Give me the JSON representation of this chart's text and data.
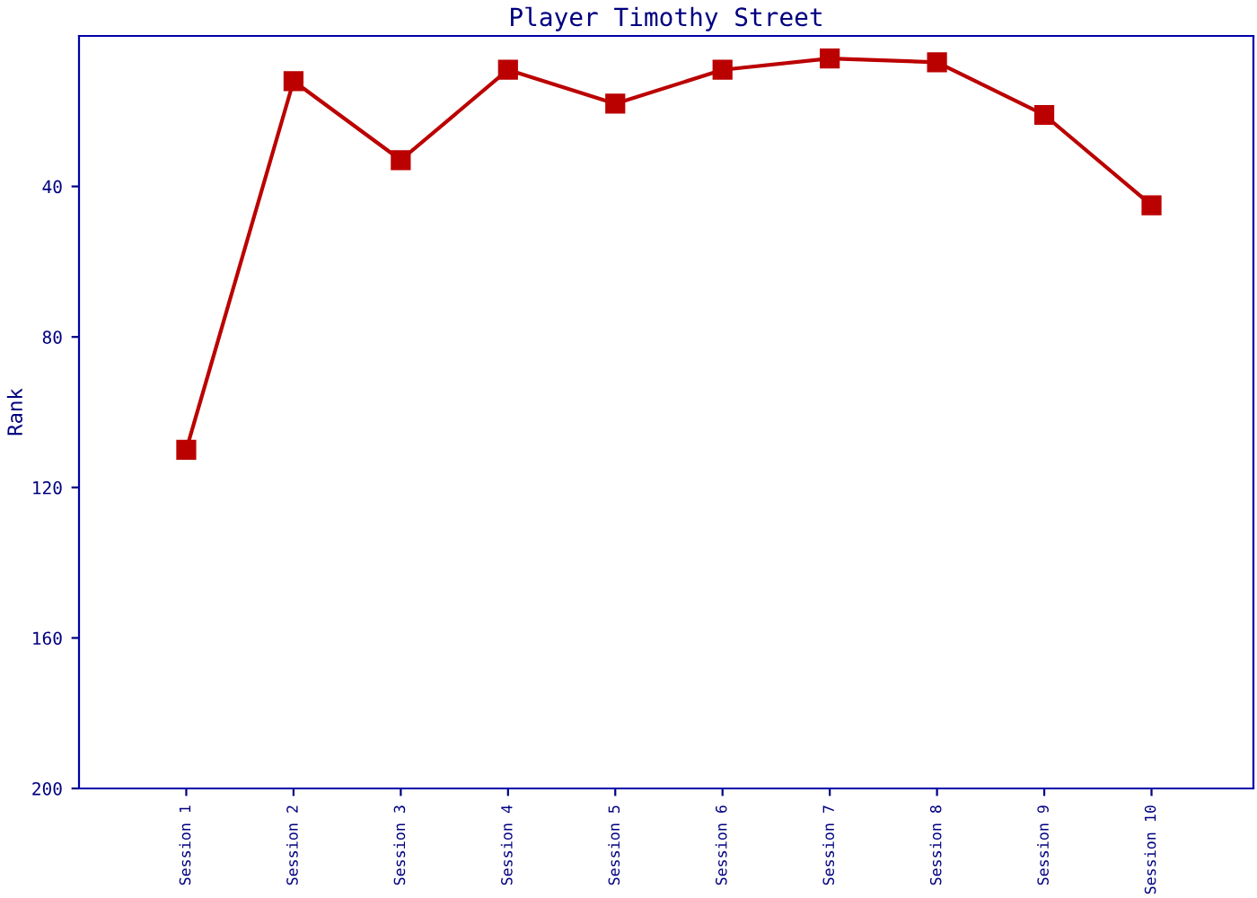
{
  "chart_data": {
    "type": "line",
    "title": "Player Timothy Street",
    "ylabel": "Rank",
    "categories": [
      "Session 1",
      "Session 2",
      "Session 3",
      "Session 4",
      "Session 5",
      "Session 6",
      "Session 7",
      "Session 8",
      "Session 9",
      "Session 10"
    ],
    "series": [
      {
        "color": "#bb0000",
        "values": [
          110,
          12,
          33,
          9,
          18,
          9,
          6,
          7,
          21,
          45
        ]
      }
    ],
    "ylim": [
      200,
      0
    ],
    "yticks": [
      40,
      80,
      120,
      160,
      200
    ],
    "grid": false,
    "legend": false,
    "marker": "square",
    "line_style": "solid"
  }
}
